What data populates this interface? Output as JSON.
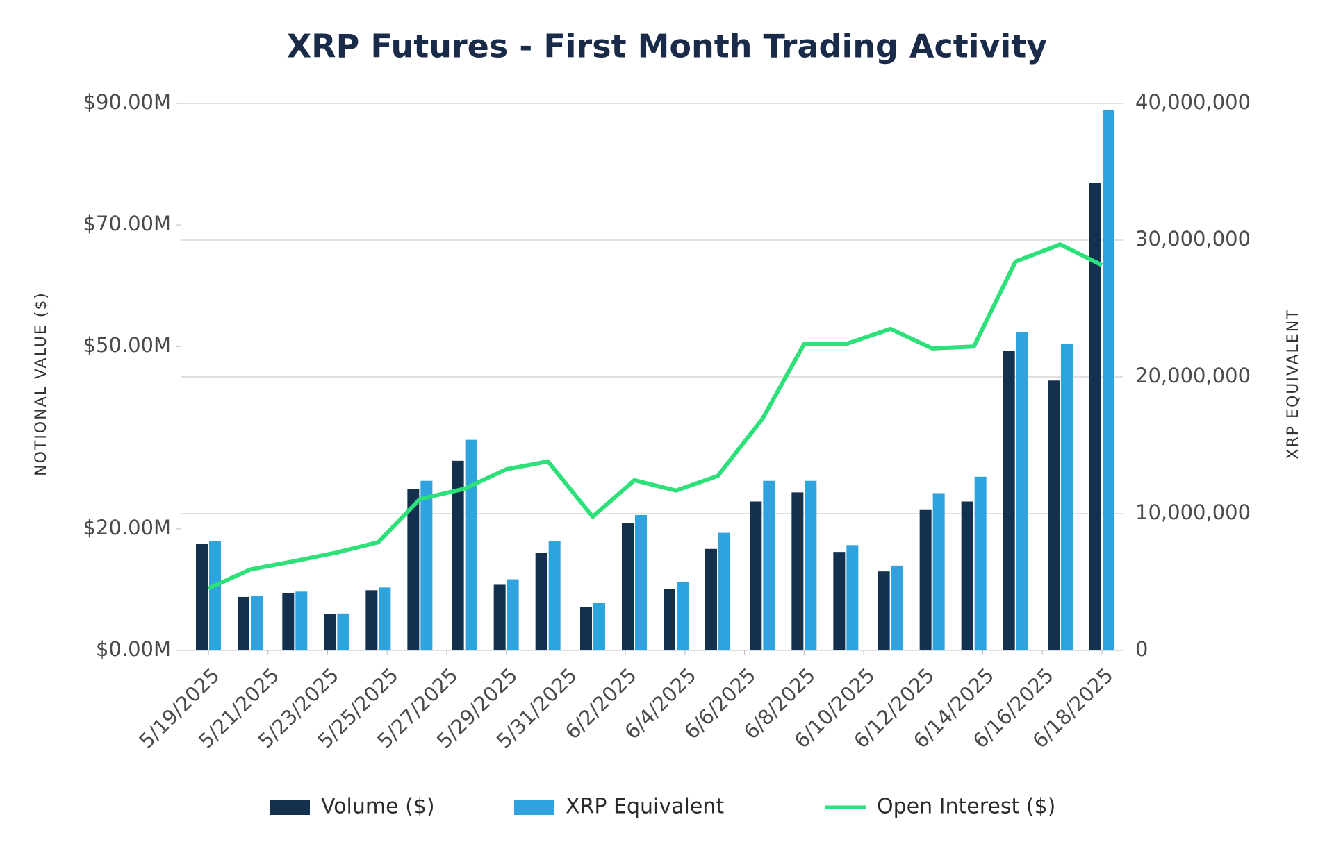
{
  "chart_data": {
    "type": "bar",
    "title": "XRP Futures - First Month Trading Activity",
    "y_label": "NOTIONAL VALUE ($)",
    "y2_label": "XRP EQUIVALENT",
    "x": [
      0,
      1.4,
      2.9,
      4.3,
      5.7,
      7.1,
      8.6,
      10,
      11.4,
      12.9,
      14.3,
      15.7,
      17.1,
      18.6,
      20,
      21.4,
      22.9,
      24.3,
      25.7,
      27.1,
      28.6,
      30
    ],
    "xlim": [
      0,
      30
    ],
    "xticks": [
      {
        "value": 0,
        "label": "5/19/2025"
      },
      {
        "value": 2,
        "label": "5/21/2025"
      },
      {
        "value": 4,
        "label": "5/23/2025"
      },
      {
        "value": 6,
        "label": "5/25/2025"
      },
      {
        "value": 8,
        "label": "5/27/2025"
      },
      {
        "value": 10,
        "label": "5/29/2025"
      },
      {
        "value": 12,
        "label": "5/31/2025"
      },
      {
        "value": 14,
        "label": "6/2/2025"
      },
      {
        "value": 16,
        "label": "6/4/2025"
      },
      {
        "value": 18,
        "label": "6/6/2025"
      },
      {
        "value": 20,
        "label": "6/8/2025"
      },
      {
        "value": 22,
        "label": "6/10/2025"
      },
      {
        "value": 24,
        "label": "6/12/2025"
      },
      {
        "value": 26,
        "label": "6/14/2025"
      },
      {
        "value": 28,
        "label": "6/16/2025"
      },
      {
        "value": 30,
        "label": "6/18/2025"
      }
    ],
    "ylim": [
      0,
      90000000
    ],
    "yticks": [
      {
        "value": 0,
        "label": "$0.00M"
      },
      {
        "value": 20000000,
        "label": "$20.00M"
      },
      {
        "value": 50000000,
        "label": "$50.00M"
      },
      {
        "value": 70000000,
        "label": "$70.00M"
      },
      {
        "value": 90000000,
        "label": "$90.00M"
      }
    ],
    "y2lim": [
      0,
      40000000
    ],
    "y2ticks": [
      {
        "value": 0,
        "label": "0"
      },
      {
        "value": 10000000,
        "label": "10,000,000"
      },
      {
        "value": 20000000,
        "label": "20,000,000"
      },
      {
        "value": 30000000,
        "label": "30,000,000"
      },
      {
        "value": 40000000,
        "label": "40,000,000"
      }
    ],
    "grid": true,
    "series": [
      {
        "name": "Volume ($)",
        "type": "bar",
        "color": "#14304f",
        "values": [
          17500000,
          8800000,
          9400000,
          6000000,
          9900000,
          26500000,
          31200000,
          10800000,
          16000000,
          7100000,
          20900000,
          10100000,
          16700000,
          24500000,
          26000000,
          16200000,
          13000000,
          23100000,
          24500000,
          49300000,
          44400000,
          76900000
        ]
      },
      {
        "name": "XRP Equivalent",
        "type": "bar",
        "axis": "y2",
        "color": "#2ea3dd",
        "values": [
          8000000,
          4000000,
          4300000,
          2700000,
          4600000,
          12400000,
          15400000,
          5200000,
          8000000,
          3500000,
          9900000,
          5000000,
          8600000,
          12400000,
          12400000,
          7700000,
          6200000,
          11500000,
          12700000,
          23300000,
          22400000,
          39500000
        ]
      },
      {
        "name": "Open Interest ($)",
        "type": "line",
        "color": "#2ee07a",
        "values": [
          10200000,
          13300000,
          14700000,
          16100000,
          17800000,
          24900000,
          26600000,
          29800000,
          31100000,
          22000000,
          28000000,
          26300000,
          28700000,
          38100000,
          50400000,
          50400000,
          52900000,
          49700000,
          50000000,
          64000000,
          66800000,
          63400000
        ]
      }
    ]
  }
}
